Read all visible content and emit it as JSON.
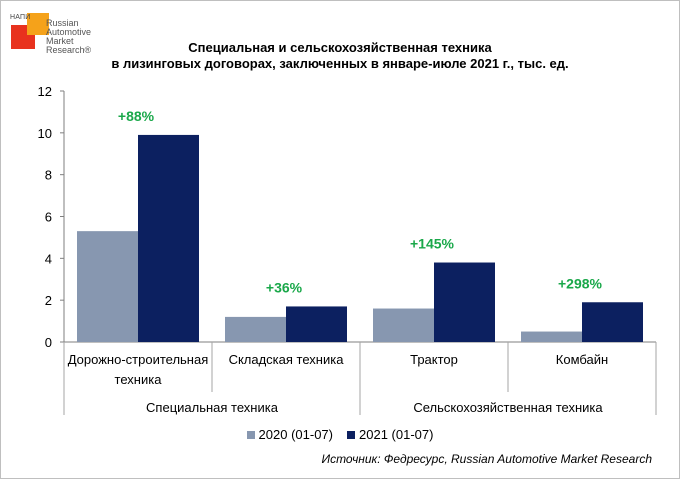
{
  "logo": {
    "small_text": "НАПИ",
    "lines": [
      "Russian",
      "Automotive",
      "Market",
      "Research®"
    ]
  },
  "title_lines": [
    "Специальная и сельскохозяйственная техника",
    "в лизинговых договорах, заключенных в январе-июле 2021 г., тыс. ед."
  ],
  "colors": {
    "series_2020": "#8797b0",
    "series_2021": "#0c2060",
    "growth": "#1aa84a"
  },
  "source": "Источник: Федресурс, Russian Automotive Market Research",
  "chart_data": {
    "type": "bar",
    "categories": [
      "Дорожно-строительная техника",
      "Складская техника",
      "Трактор",
      "Комбайн"
    ],
    "category_lines": [
      [
        "Дорожно-строительная",
        "техника"
      ],
      [
        "Складская техника"
      ],
      [
        "Трактор"
      ],
      [
        "Комбайн"
      ]
    ],
    "groups": [
      {
        "label": "Специальная техника",
        "categories": [
          0,
          1
        ]
      },
      {
        "label": "Сельскохозяйственная техника",
        "categories": [
          2,
          3
        ]
      }
    ],
    "series": [
      {
        "name": "2020 (01-07)",
        "values": [
          5.3,
          1.2,
          1.6,
          0.5
        ]
      },
      {
        "name": "2021 (01-07)",
        "values": [
          9.9,
          1.7,
          3.8,
          1.9
        ]
      }
    ],
    "annotations": [
      "+88%",
      "+36%",
      "+145%",
      "+298%"
    ],
    "yticks": [
      "0",
      "2",
      "4",
      "6",
      "8",
      "10",
      "12"
    ],
    "ylim": [
      0,
      12
    ],
    "grid": false,
    "legend": "bottom"
  }
}
